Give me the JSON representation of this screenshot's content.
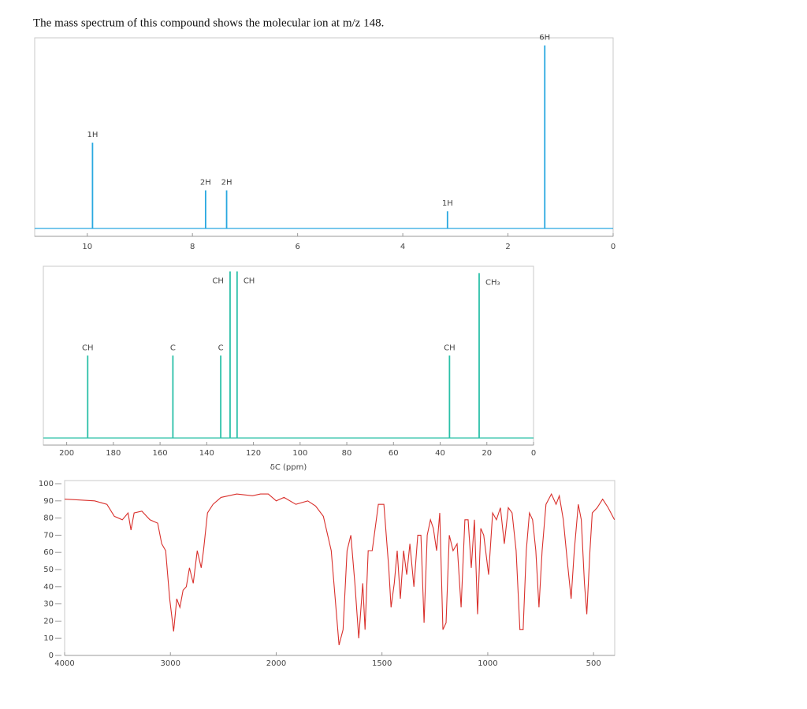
{
  "header": "The mass spectrum of this compound shows the molecular ion at m/z 148.",
  "chart_data": [
    {
      "type": "stick",
      "color": "#29a8e0",
      "x": [
        9.9,
        7.75,
        7.35,
        3.15,
        1.3
      ],
      "values": [
        45,
        20,
        20,
        9,
        96
      ],
      "labels": [
        "1H",
        "2H",
        "2H",
        "1H",
        "6H"
      ],
      "xlim": [
        11,
        0
      ],
      "xticks": [
        10,
        8,
        6,
        4,
        2,
        0
      ],
      "ylim": [
        0,
        100
      ]
    },
    {
      "type": "stick",
      "color": "#2bc0a8",
      "x": [
        191,
        154.5,
        134,
        130,
        127,
        36,
        23.3
      ],
      "values": [
        48,
        48,
        48,
        97,
        97,
        48,
        96
      ],
      "labels": [
        "CH",
        "C",
        "C",
        "CH",
        "CH",
        "CH",
        "CH₃"
      ],
      "xlabel": "δC (ppm)",
      "xlim": [
        210,
        0
      ],
      "xticks": [
        200,
        180,
        160,
        140,
        120,
        100,
        80,
        60,
        40,
        20,
        0
      ],
      "ylim": [
        0,
        100
      ]
    },
    {
      "type": "line",
      "color": "#d9302c",
      "x": [
        4000,
        3716,
        3600,
        3530,
        3455,
        3400,
        3373,
        3343,
        3270,
        3194,
        3120,
        3082,
        3045,
        3007,
        2970,
        2940,
        2910,
        2880,
        2850,
        2820,
        2784,
        2746,
        2709,
        2687,
        2649,
        2597,
        2522,
        2373,
        2224,
        2149,
        2075,
        2000,
        1963,
        1907,
        1851,
        1814,
        1777,
        1740,
        1703,
        1684,
        1665,
        1647,
        1628,
        1610,
        1591,
        1580,
        1565,
        1546,
        1517,
        1491,
        1468,
        1457,
        1442,
        1428,
        1413,
        1398,
        1383,
        1368,
        1349,
        1331,
        1316,
        1301,
        1286,
        1271,
        1257,
        1242,
        1227,
        1212,
        1197,
        1182,
        1164,
        1145,
        1126,
        1108,
        1093,
        1078,
        1063,
        1048,
        1033,
        1019,
        996,
        977,
        959,
        940,
        922,
        903,
        885,
        866,
        848,
        833,
        818,
        803,
        788,
        773,
        758,
        743,
        725,
        699,
        677,
        662,
        643,
        625,
        606,
        591,
        572,
        558,
        543,
        532,
        517,
        506,
        483,
        457,
        431,
        401
      ],
      "values": [
        91,
        90,
        88,
        81,
        79,
        83,
        73,
        83,
        84,
        79,
        77,
        65,
        61,
        33,
        14,
        33,
        28,
        38,
        40,
        51,
        42,
        61,
        51,
        61,
        83,
        88,
        92,
        94,
        93,
        94,
        94,
        90,
        92,
        88,
        90,
        87,
        81,
        61,
        6,
        15,
        61,
        70,
        42,
        10,
        42,
        15,
        61,
        61,
        88,
        88,
        51,
        28,
        42,
        61,
        33,
        61,
        47,
        65,
        40,
        70,
        70,
        19,
        70,
        79,
        74,
        61,
        83,
        15,
        19,
        70,
        61,
        65,
        28,
        79,
        79,
        51,
        79,
        24,
        74,
        70,
        47,
        83,
        79,
        86,
        65,
        86,
        83,
        61,
        15,
        15,
        61,
        83,
        79,
        61,
        28,
        61,
        88,
        94,
        88,
        93,
        79,
        56,
        33,
        61,
        88,
        79,
        42,
        24,
        61,
        83,
        86,
        91,
        86,
        79
      ],
      "xlim": [
        4000,
        400
      ],
      "xscale": {
        "break": 2000,
        "factor": 2
      },
      "xticks": [
        4000,
        3000,
        2000,
        1500,
        1000,
        500
      ],
      "ylim": [
        0,
        100
      ],
      "yticks": [
        0,
        10,
        20,
        30,
        40,
        50,
        60,
        70,
        80,
        90,
        100
      ]
    }
  ]
}
